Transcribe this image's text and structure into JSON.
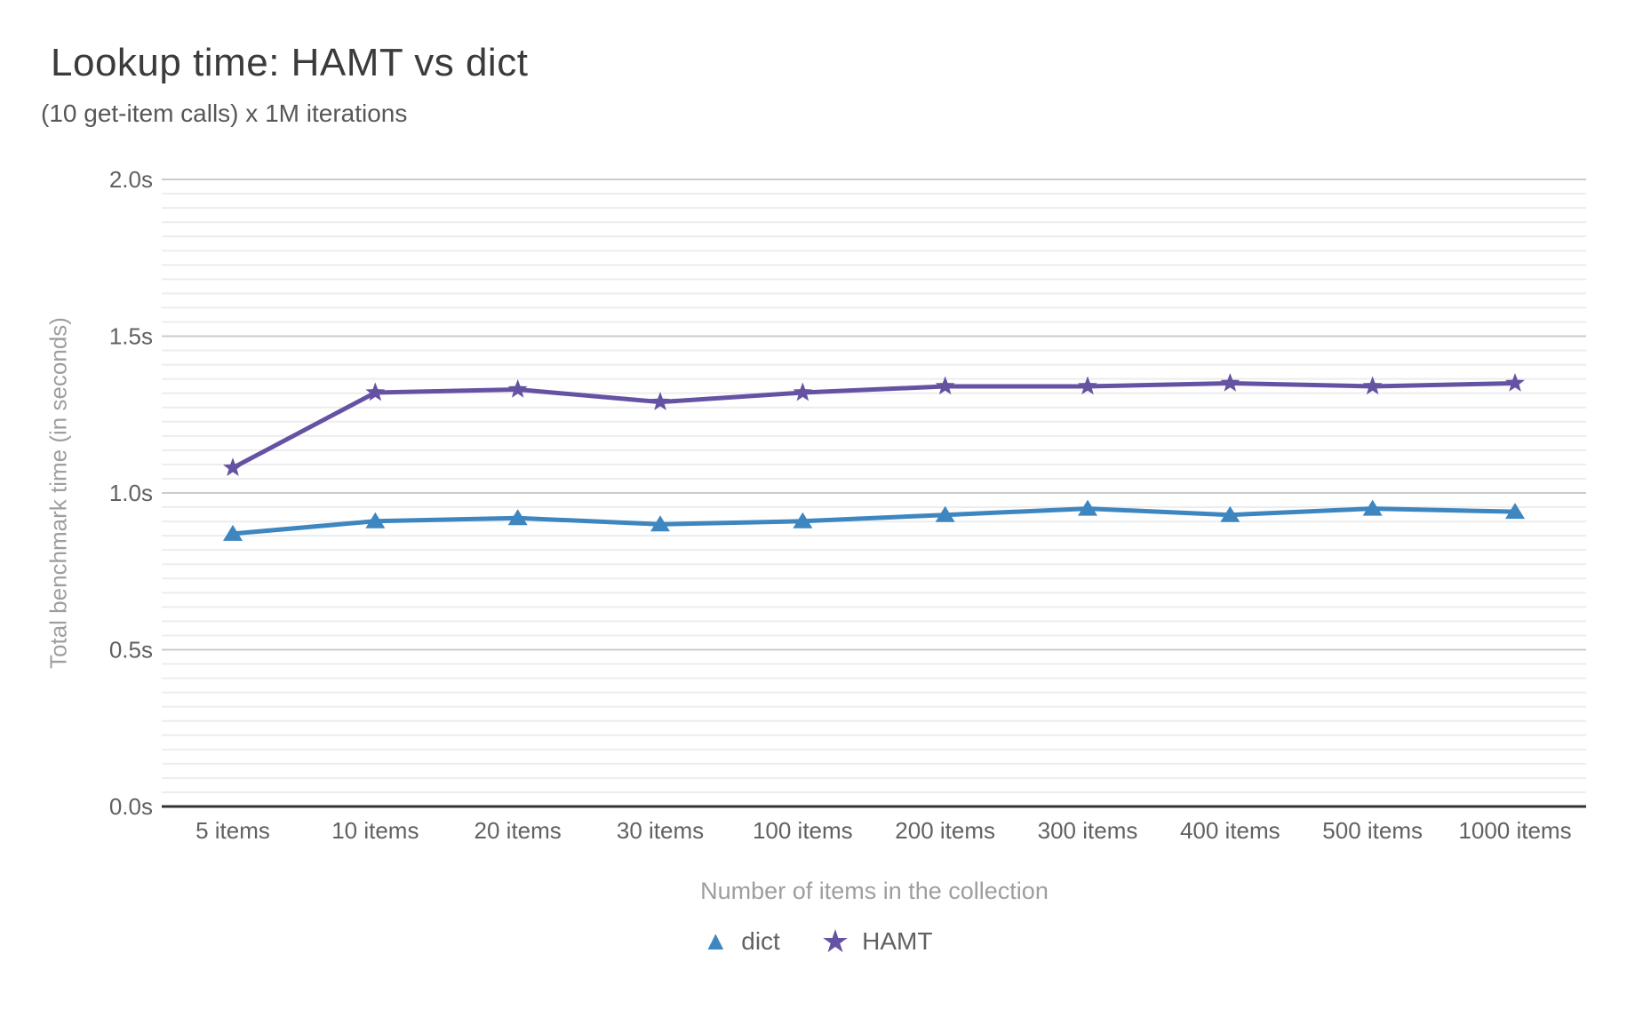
{
  "header": {
    "title": "Lookup time: HAMT vs dict",
    "subtitle": "(10 get-item calls) x 1M iterations"
  },
  "chart_data": {
    "type": "line",
    "title": "Lookup time: HAMT vs dict",
    "subtitle": "(10 get-item calls) x 1M iterations",
    "xlabel": "Number of items in the collection",
    "ylabel": "Total benchmark time (in seconds)",
    "categories": [
      "5 items",
      "10 items",
      "20 items",
      "30 items",
      "100 items",
      "200 items",
      "300 items",
      "400 items",
      "500 items",
      "1000 items"
    ],
    "series": [
      {
        "name": "dict",
        "marker": "triangle-icon",
        "color": "#3e86c0",
        "values": [
          0.87,
          0.91,
          0.92,
          0.9,
          0.91,
          0.93,
          0.95,
          0.93,
          0.95,
          0.94
        ]
      },
      {
        "name": "HAMT",
        "marker": "star-icon",
        "color": "#6552a3",
        "values": [
          1.08,
          1.32,
          1.33,
          1.29,
          1.32,
          1.34,
          1.34,
          1.35,
          1.34,
          1.35
        ]
      }
    ],
    "ylim": [
      0,
      2.0
    ],
    "yticks": [
      {
        "value": 0.0,
        "label": "0.0s"
      },
      {
        "value": 0.5,
        "label": "0.5s"
      },
      {
        "value": 1.0,
        "label": "1.0s"
      },
      {
        "value": 1.5,
        "label": "1.5s"
      },
      {
        "value": 2.0,
        "label": "2.0s"
      }
    ],
    "minor_gridline_divisions_per_major": 11,
    "grid": true,
    "legend_position": "bottom",
    "units": "seconds"
  },
  "colors": {
    "dict_series": "#3e86c0",
    "hamt_series": "#6552a3",
    "title_text": "#3b3b3b",
    "subtitle_text": "#575757",
    "tick_text": "#616161",
    "axis_title_text": "#9e9e9e",
    "major_gridline": "#cccccc",
    "minor_gridline": "#ededed",
    "axis_baseline": "#333333",
    "background": "#ffffff"
  },
  "legend": {
    "items": [
      {
        "label": "dict",
        "marker": "triangle-icon",
        "color": "#3e86c0"
      },
      {
        "label": "HAMT",
        "marker": "star-icon",
        "color": "#6552a3"
      }
    ]
  }
}
